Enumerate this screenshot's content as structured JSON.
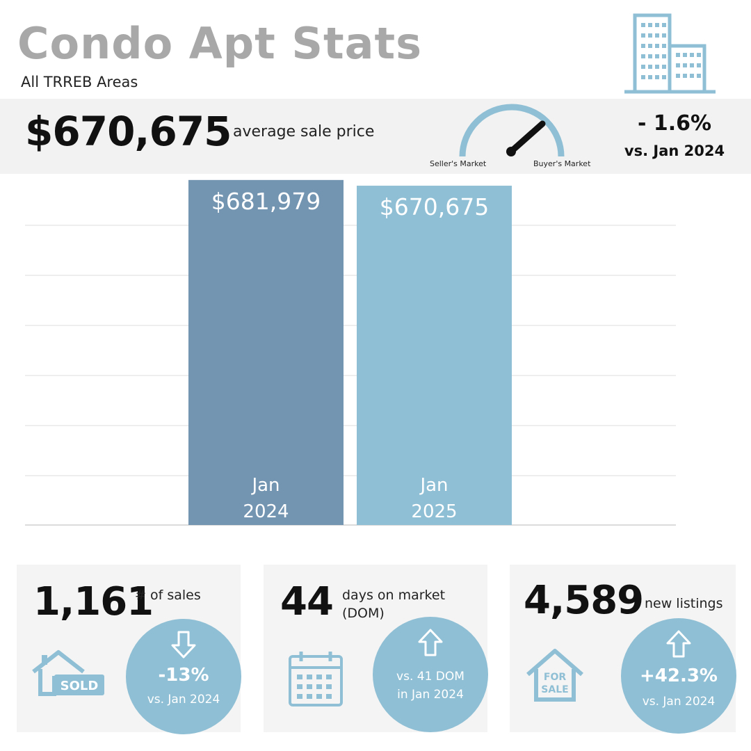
{
  "header": {
    "title": "Condo Apt Stats",
    "subtitle": "All TRREB Areas"
  },
  "summary": {
    "average_price": "$670,675",
    "average_label": "average sale price",
    "gauge_left_label": "Seller's Market",
    "gauge_right_label": "Buyer's Market",
    "change_pct": "- 1.6%",
    "change_vs": "vs. Jan 2024"
  },
  "chart_data": {
    "type": "bar",
    "categories": [
      "Jan 2024",
      "Jan 2025"
    ],
    "category_lines": [
      [
        "Jan",
        "2024"
      ],
      [
        "Jan",
        "2025"
      ]
    ],
    "values": [
      681979,
      670675
    ],
    "value_labels": [
      "$681,979",
      "$670,675"
    ],
    "colors": [
      "#7495b2",
      "#8fbfd4"
    ],
    "grid": true,
    "ylim": [
      0,
      690000
    ]
  },
  "stats": [
    {
      "value": "1,161",
      "label_lines": [
        "# of sales"
      ],
      "direction": "down",
      "change_main": "-13%",
      "change_sub": "vs. Jan 2024",
      "icon": "sold-house-icon",
      "icon_text": "SOLD"
    },
    {
      "value": "44",
      "label_lines": [
        "days on market",
        "(DOM)"
      ],
      "direction": "up",
      "change_main": "vs. 41 DOM",
      "change_sub": "in Jan 2024",
      "icon": "calendar-icon"
    },
    {
      "value": "4,589",
      "label_lines": [
        "new listings"
      ],
      "direction": "up",
      "change_main": "+42.3%",
      "change_sub": "vs. Jan 2024",
      "icon": "for-sale-house-icon",
      "icon_text_lines": [
        "FOR",
        "SALE"
      ]
    }
  ],
  "colors": {
    "accent": "#8fbfd4",
    "dark_bar": "#7495b2",
    "title_gray": "#a8a8a8",
    "band": "#f2f2f2"
  }
}
